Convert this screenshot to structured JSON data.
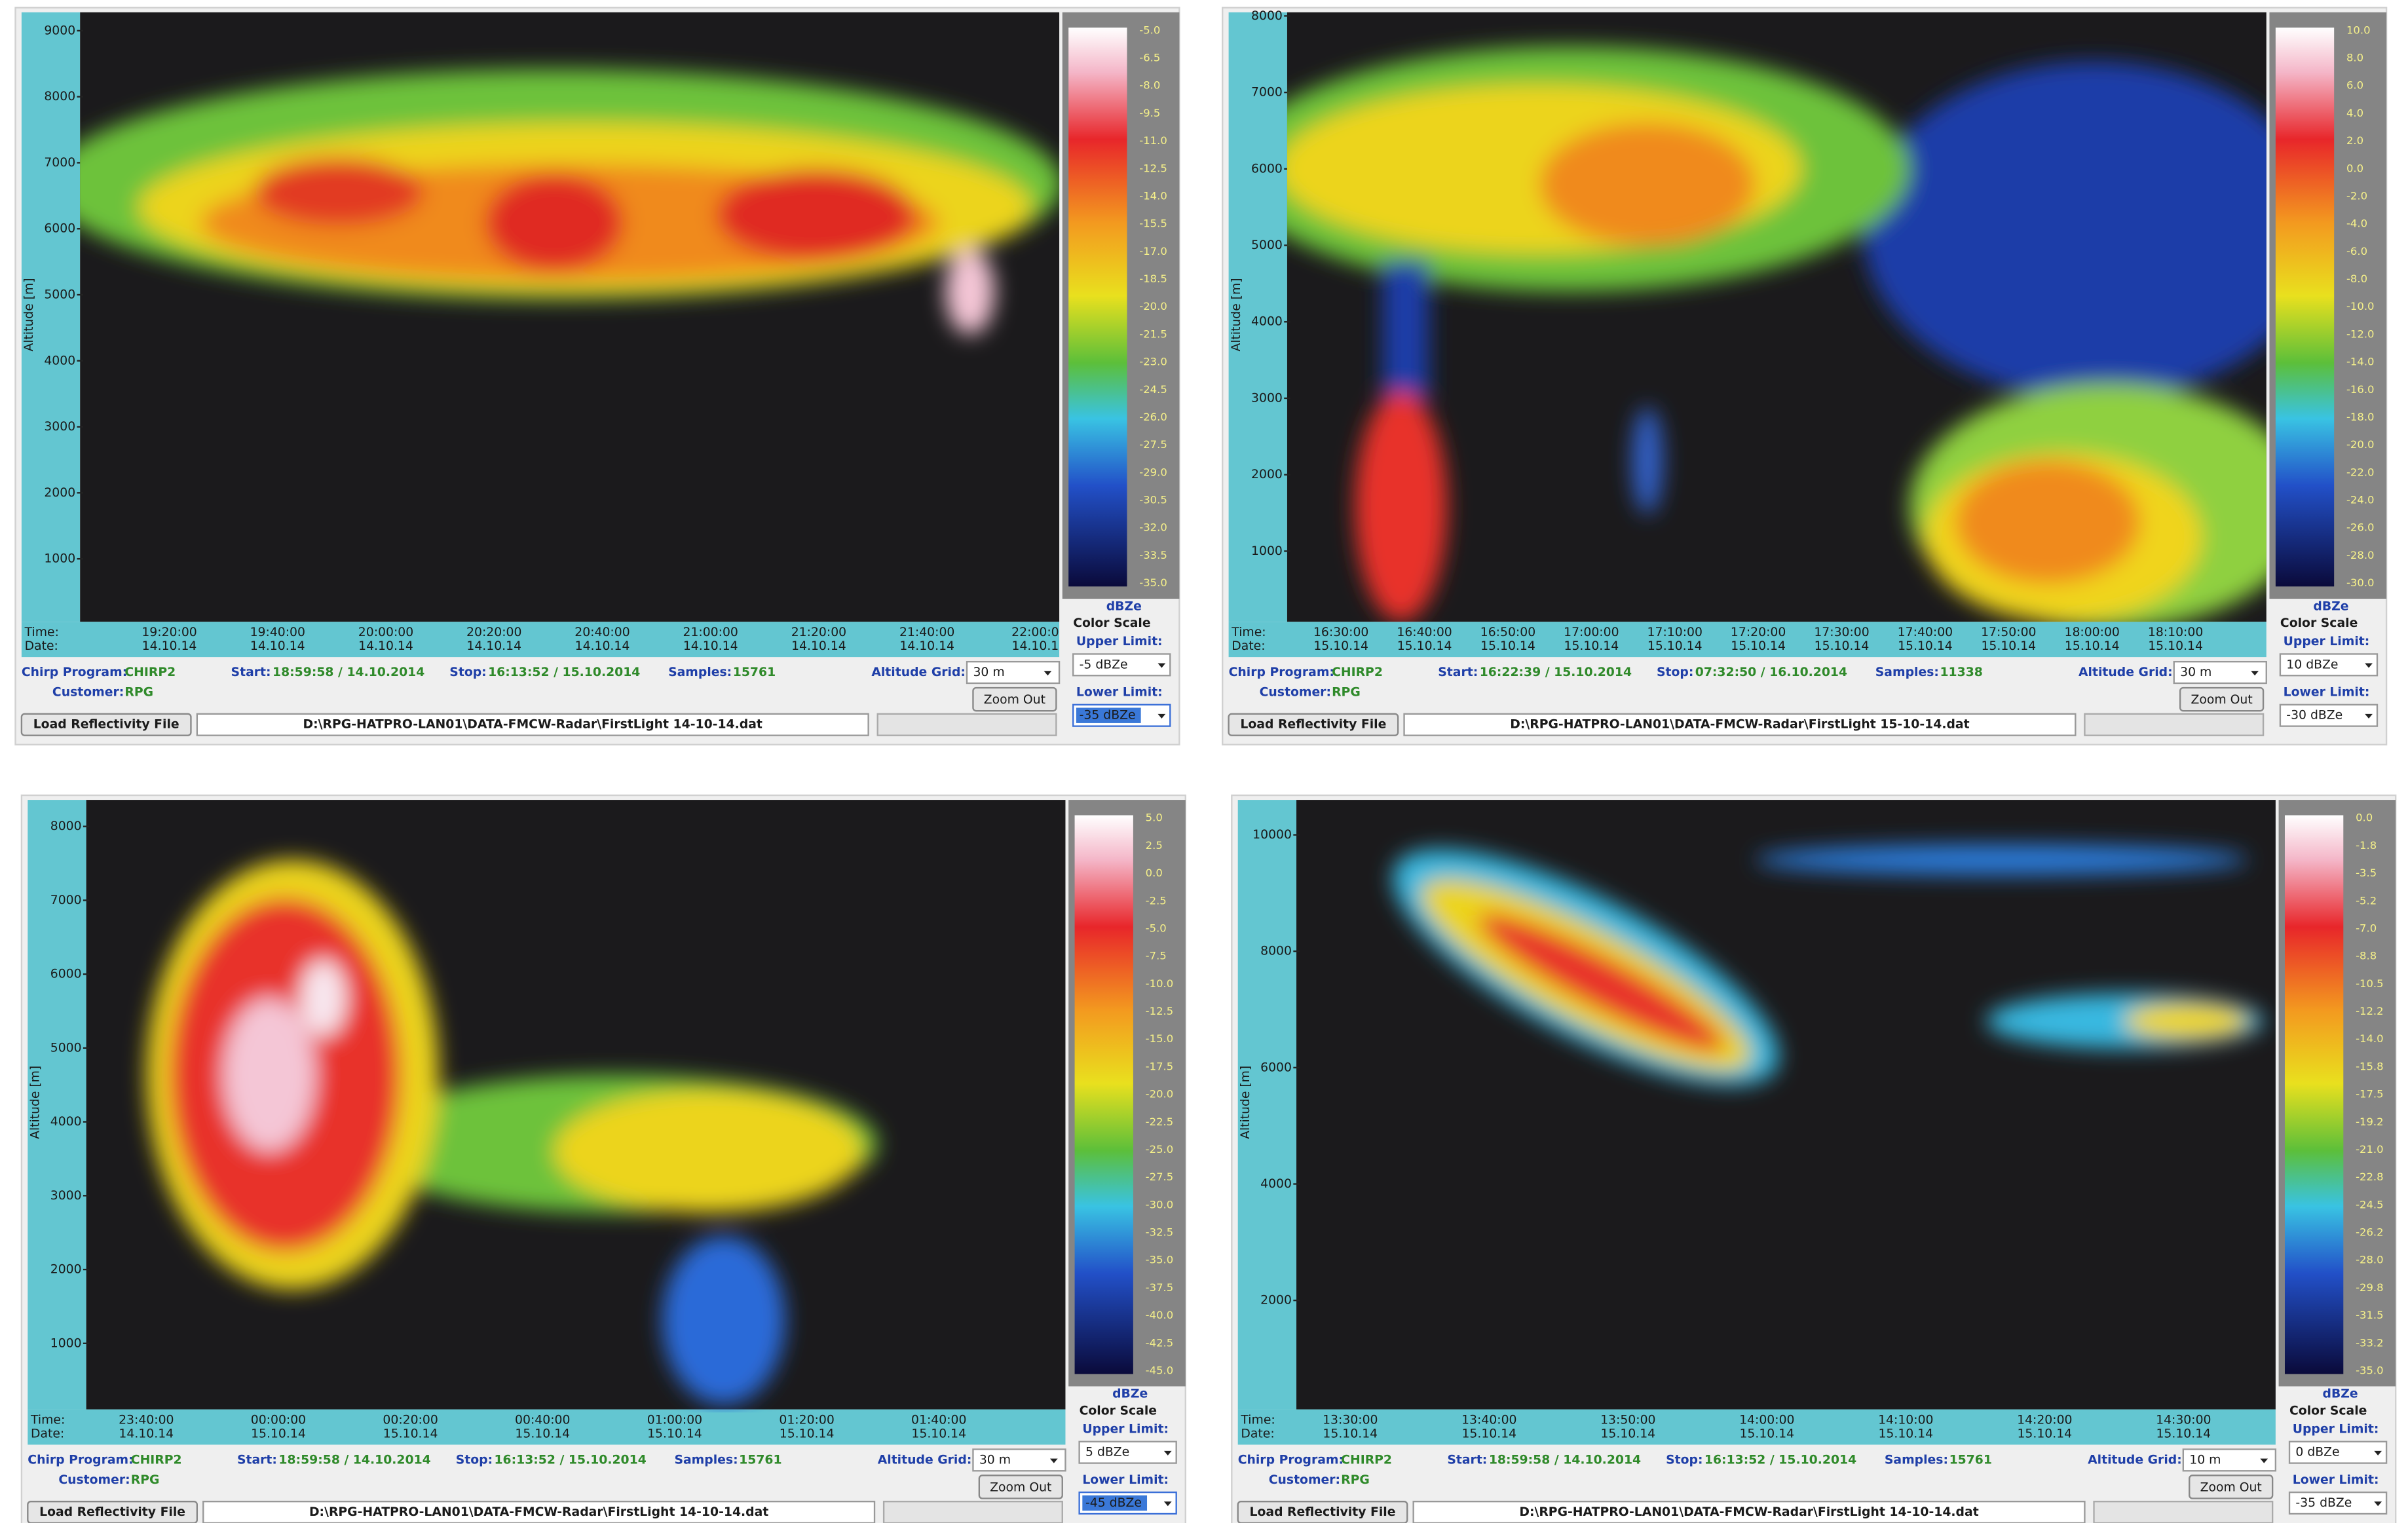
{
  "labels": {
    "altitude": "Altitude [m]",
    "time": "Time:",
    "date": "Date:",
    "unit": "dBZe",
    "color_scale": "Color Scale",
    "upper_limit": "Upper Limit:",
    "lower_limit": "Lower Limit:",
    "chirp_program": "Chirp Program:",
    "customer": "Customer:",
    "start": "Start:",
    "stop": "Stop:",
    "samples": "Samples:",
    "altitude_grid": "Altitude Grid:",
    "zoom_out": "Zoom Out",
    "load_file": "Load Reflectivity File"
  },
  "panels": [
    {
      "yticks": [
        9000,
        8000,
        7000,
        6000,
        5000,
        4000,
        3000,
        2000,
        1000
      ],
      "times": [
        "19:20:00",
        "19:40:00",
        "20:00:00",
        "20:20:00",
        "20:40:00",
        "21:00:00",
        "21:20:00",
        "21:40:00",
        "22:00:0"
      ],
      "dates": [
        "14.10.14",
        "14.10.14",
        "14.10.14",
        "14.10.14",
        "14.10.14",
        "14.10.14",
        "14.10.14",
        "14.10.14",
        "14.10.1"
      ],
      "scale": [
        "-5.0",
        "-6.5",
        "-8.0",
        "-9.5",
        "-11.0",
        "-12.5",
        "-14.0",
        "-15.5",
        "-17.0",
        "-18.5",
        "-20.0",
        "-21.5",
        "-23.0",
        "-24.5",
        "-26.0",
        "-27.5",
        "-29.0",
        "-30.5",
        "-32.0",
        "-33.5",
        "-35.0"
      ],
      "chirp": "CHIRP2",
      "customer": "RPG",
      "start": "18:59:58 / 14.10.2014",
      "stop": "16:13:52 / 15.10.2014",
      "samples": 15761,
      "altitude_grid": "30 m",
      "upper": "-5 dBZe",
      "lower": "-35 dBZe",
      "file": "D:\\RPG-HATPRO-LAN01\\DATA-FMCW-Radar\\FirstLight 14-10-14.dat"
    },
    {
      "yticks": [
        8000,
        7000,
        6000,
        5000,
        4000,
        3000,
        2000,
        1000
      ],
      "times": [
        "16:30:00",
        "16:40:00",
        "16:50:00",
        "17:00:00",
        "17:10:00",
        "17:20:00",
        "17:30:00",
        "17:40:00",
        "17:50:00",
        "18:00:00",
        "18:10:00"
      ],
      "dates": [
        "15.10.14",
        "15.10.14",
        "15.10.14",
        "15.10.14",
        "15.10.14",
        "15.10.14",
        "15.10.14",
        "15.10.14",
        "15.10.14",
        "15.10.14",
        "15.10.14"
      ],
      "scale": [
        "10.0",
        "8.0",
        "6.0",
        "4.0",
        "2.0",
        "0.0",
        "-2.0",
        "-4.0",
        "-6.0",
        "-8.0",
        "-10.0",
        "-12.0",
        "-14.0",
        "-16.0",
        "-18.0",
        "-20.0",
        "-22.0",
        "-24.0",
        "-26.0",
        "-28.0",
        "-30.0"
      ],
      "chirp": "CHIRP2",
      "customer": "RPG",
      "start": "16:22:39 / 15.10.2014",
      "stop": "07:32:50 / 16.10.2014",
      "samples": 11338,
      "altitude_grid": "30 m",
      "upper": "10 dBZe",
      "lower": "-30 dBZe",
      "file": "D:\\RPG-HATPRO-LAN01\\DATA-FMCW-Radar\\FirstLight 15-10-14.dat"
    },
    {
      "yticks": [
        8000,
        7000,
        6000,
        5000,
        4000,
        3000,
        2000,
        1000
      ],
      "times": [
        "23:40:00",
        "00:00:00",
        "00:20:00",
        "00:40:00",
        "01:00:00",
        "01:20:00",
        "01:40:00"
      ],
      "dates": [
        "14.10.14",
        "15.10.14",
        "15.10.14",
        "15.10.14",
        "15.10.14",
        "15.10.14",
        "15.10.14"
      ],
      "scale": [
        "5.0",
        "2.5",
        "0.0",
        "-2.5",
        "-5.0",
        "-7.5",
        "-10.0",
        "-12.5",
        "-15.0",
        "-17.5",
        "-20.0",
        "-22.5",
        "-25.0",
        "-27.5",
        "-30.0",
        "-32.5",
        "-35.0",
        "-37.5",
        "-40.0",
        "-42.5",
        "-45.0"
      ],
      "chirp": "CHIRP2",
      "customer": "RPG",
      "start": "18:59:58 / 14.10.2014",
      "stop": "16:13:52 / 15.10.2014",
      "samples": 15761,
      "altitude_grid": "30 m",
      "upper": "5 dBZe",
      "lower": "-45 dBZe",
      "file": "D:\\RPG-HATPRO-LAN01\\DATA-FMCW-Radar\\FirstLight 14-10-14.dat"
    },
    {
      "yticks": [
        10000,
        8000,
        6000,
        4000,
        2000
      ],
      "times": [
        "13:30:00",
        "13:40:00",
        "13:50:00",
        "14:00:00",
        "14:10:00",
        "14:20:00",
        "14:30:00"
      ],
      "dates": [
        "15.10.14",
        "15.10.14",
        "15.10.14",
        "15.10.14",
        "15.10.14",
        "15.10.14",
        "15.10.14"
      ],
      "scale": [
        "0.0",
        "-1.8",
        "-3.5",
        "-5.2",
        "-7.0",
        "-8.8",
        "-10.5",
        "-12.2",
        "-14.0",
        "-15.8",
        "-17.5",
        "-19.2",
        "-21.0",
        "-22.8",
        "-24.5",
        "-26.2",
        "-28.0",
        "-29.8",
        "-31.5",
        "-33.2",
        "-35.0"
      ],
      "chirp": "CHIRP2",
      "customer": "RPG",
      "start": "18:59:58 / 14.10.2014",
      "stop": "16:13:52 / 15.10.2014",
      "samples": 15761,
      "altitude_grid": "10 m",
      "upper": "0 dBZe",
      "lower": "-35 dBZe",
      "file": "D:\\RPG-HATPRO-LAN01\\DATA-FMCW-Radar\\FirstLight 14-10-14.dat"
    }
  ]
}
